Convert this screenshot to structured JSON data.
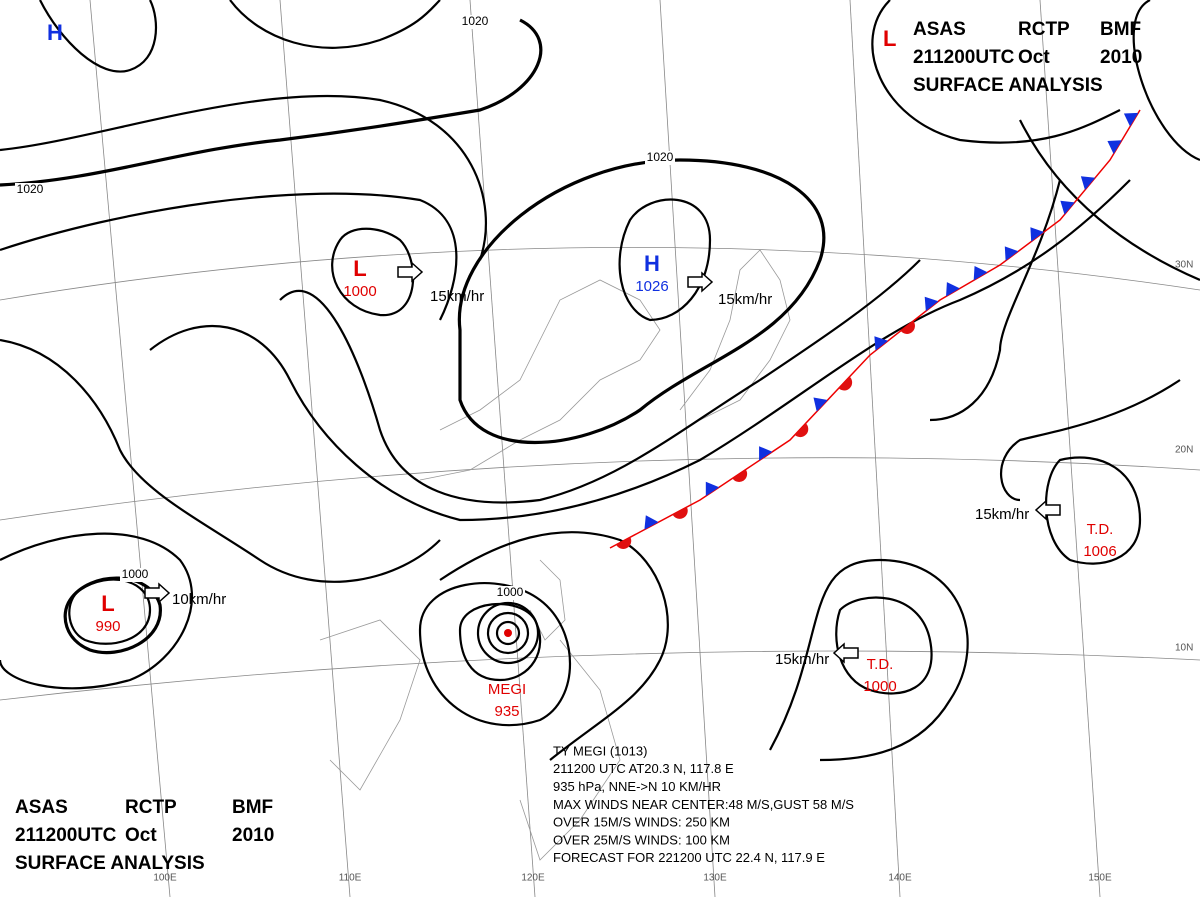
{
  "header_top": {
    "line1": [
      "ASAS",
      "RCTP",
      "BMF"
    ],
    "line2": [
      "211200UTC",
      "Oct",
      "2010"
    ],
    "line3": "SURFACE ANALYSIS",
    "symbol": "L"
  },
  "header_bottom": {
    "line1": [
      "ASAS",
      "RCTP",
      "BMF"
    ],
    "line2": [
      "211200UTC",
      "Oct",
      "2010"
    ],
    "line3": "SURFACE ANALYSIS"
  },
  "systems": [
    {
      "symbol": "H"
    },
    {
      "symbol": "L",
      "pressure": "1000"
    },
    {
      "symbol": "H",
      "pressure": "1026"
    },
    {
      "symbol": "L",
      "pressure": "990"
    },
    {
      "symbol": "T.D.",
      "pressure": "1006"
    },
    {
      "symbol": "T.D.",
      "pressure": "1000"
    },
    {
      "symbol": "MEGI",
      "pressure": "935"
    }
  ],
  "movements": [
    "15km/hr",
    "15km/hr",
    "10km/hr",
    "15km/hr",
    "15km/hr"
  ],
  "isobar_labels": [
    "1020",
    "1020",
    "1020",
    "1000",
    "1000"
  ],
  "latitudes": [
    "30N",
    "20N",
    "10N"
  ],
  "longitudes": [
    "100E",
    "110E",
    "120E",
    "130E",
    "140E",
    "150E"
  ],
  "typhoon_info": [
    "TY MEGI (1013)",
    "211200 UTC  AT20.3 N, 117.8 E",
    "935 hPa, NNE->N  10 KM/HR",
    "MAX WINDS NEAR CENTER:48 M/S,GUST 58 M/S",
    "OVER 15M/S WINDS: 250 KM",
    "OVER 25M/S WINDS: 100 KM",
    "FORECAST FOR 221200 UTC 22.4 N, 117.9 E"
  ]
}
